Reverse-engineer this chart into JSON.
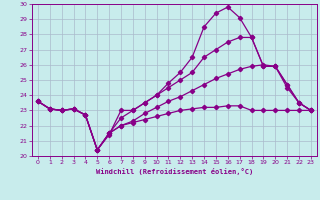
{
  "xlabel": "Windchill (Refroidissement éolien,°C)",
  "background_color": "#c8ecec",
  "line_color": "#880088",
  "grid_color": "#aabbcc",
  "xlim": [
    -0.5,
    23.5
  ],
  "ylim": [
    20,
    30
  ],
  "yticks": [
    20,
    21,
    22,
    23,
    24,
    25,
    26,
    27,
    28,
    29,
    30
  ],
  "xticks": [
    0,
    1,
    2,
    3,
    4,
    5,
    6,
    7,
    8,
    9,
    10,
    11,
    12,
    13,
    14,
    15,
    16,
    17,
    18,
    19,
    20,
    21,
    22,
    23
  ],
  "series1_x": [
    0,
    1,
    2,
    3,
    4,
    5,
    6,
    7,
    8,
    9,
    10,
    11,
    12,
    13,
    14,
    15,
    16,
    17,
    18,
    19,
    20,
    21,
    22,
    23
  ],
  "series1_y": [
    23.6,
    23.1,
    23.0,
    23.1,
    22.7,
    20.4,
    21.4,
    23.0,
    23.0,
    23.5,
    24.0,
    24.8,
    25.5,
    26.5,
    28.5,
    29.4,
    29.8,
    29.1,
    27.8,
    25.9,
    25.9,
    24.7,
    23.5,
    23.0
  ],
  "series2_x": [
    0,
    1,
    2,
    3,
    4,
    5,
    6,
    7,
    8,
    9,
    10,
    11,
    12,
    13,
    14,
    15,
    16,
    17,
    18,
    19,
    20,
    21,
    22,
    23
  ],
  "series2_y": [
    23.6,
    23.1,
    23.0,
    23.1,
    22.7,
    20.4,
    21.5,
    22.5,
    23.0,
    23.5,
    24.0,
    24.5,
    25.0,
    25.5,
    26.5,
    27.0,
    27.5,
    27.8,
    27.8,
    25.9,
    25.9,
    24.7,
    23.5,
    23.0
  ],
  "series3_x": [
    0,
    1,
    2,
    3,
    4,
    5,
    6,
    7,
    8,
    9,
    10,
    11,
    12,
    13,
    14,
    15,
    16,
    17,
    18,
    19,
    20,
    21,
    22,
    23
  ],
  "series3_y": [
    23.6,
    23.1,
    23.0,
    23.1,
    22.7,
    20.4,
    21.5,
    22.0,
    22.3,
    22.8,
    23.2,
    23.6,
    23.9,
    24.3,
    24.7,
    25.1,
    25.4,
    25.7,
    25.9,
    26.0,
    25.9,
    24.5,
    23.5,
    23.0
  ],
  "series4_x": [
    0,
    1,
    2,
    3,
    4,
    5,
    6,
    7,
    8,
    9,
    10,
    11,
    12,
    13,
    14,
    15,
    16,
    17,
    18,
    19,
    20,
    21,
    22,
    23
  ],
  "series4_y": [
    23.6,
    23.1,
    23.0,
    23.1,
    22.7,
    20.4,
    21.5,
    22.0,
    22.2,
    22.4,
    22.6,
    22.8,
    23.0,
    23.1,
    23.2,
    23.2,
    23.3,
    23.3,
    23.0,
    23.0,
    23.0,
    23.0,
    23.0,
    23.0
  ]
}
